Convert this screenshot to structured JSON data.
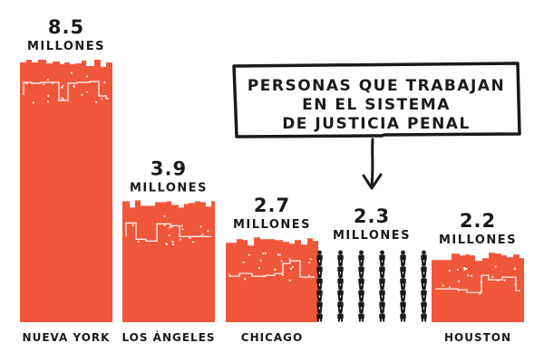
{
  "chart_data": {
    "type": "bar",
    "categories": [
      "NUEVA YORK",
      "LOS ÁNGELES",
      "CHICAGO",
      "",
      "HOUSTON"
    ],
    "value_labels": [
      "8.5",
      "3.9",
      "2.7",
      "2.3",
      "2.2"
    ],
    "unit_label": "MILLONES",
    "series": [
      {
        "values": [
          8.5,
          3.9,
          2.7,
          2.3,
          2.2
        ]
      }
    ],
    "highlight_index": 3,
    "annotation": [
      "PERSONAS QUE TRABAJAN",
      "EN EL SISTEMA",
      "DE JUSTICIA PENAL"
    ],
    "colors": {
      "bar": "#f0573a",
      "ink": "#1a1a1a",
      "background": "#ffffff"
    }
  }
}
